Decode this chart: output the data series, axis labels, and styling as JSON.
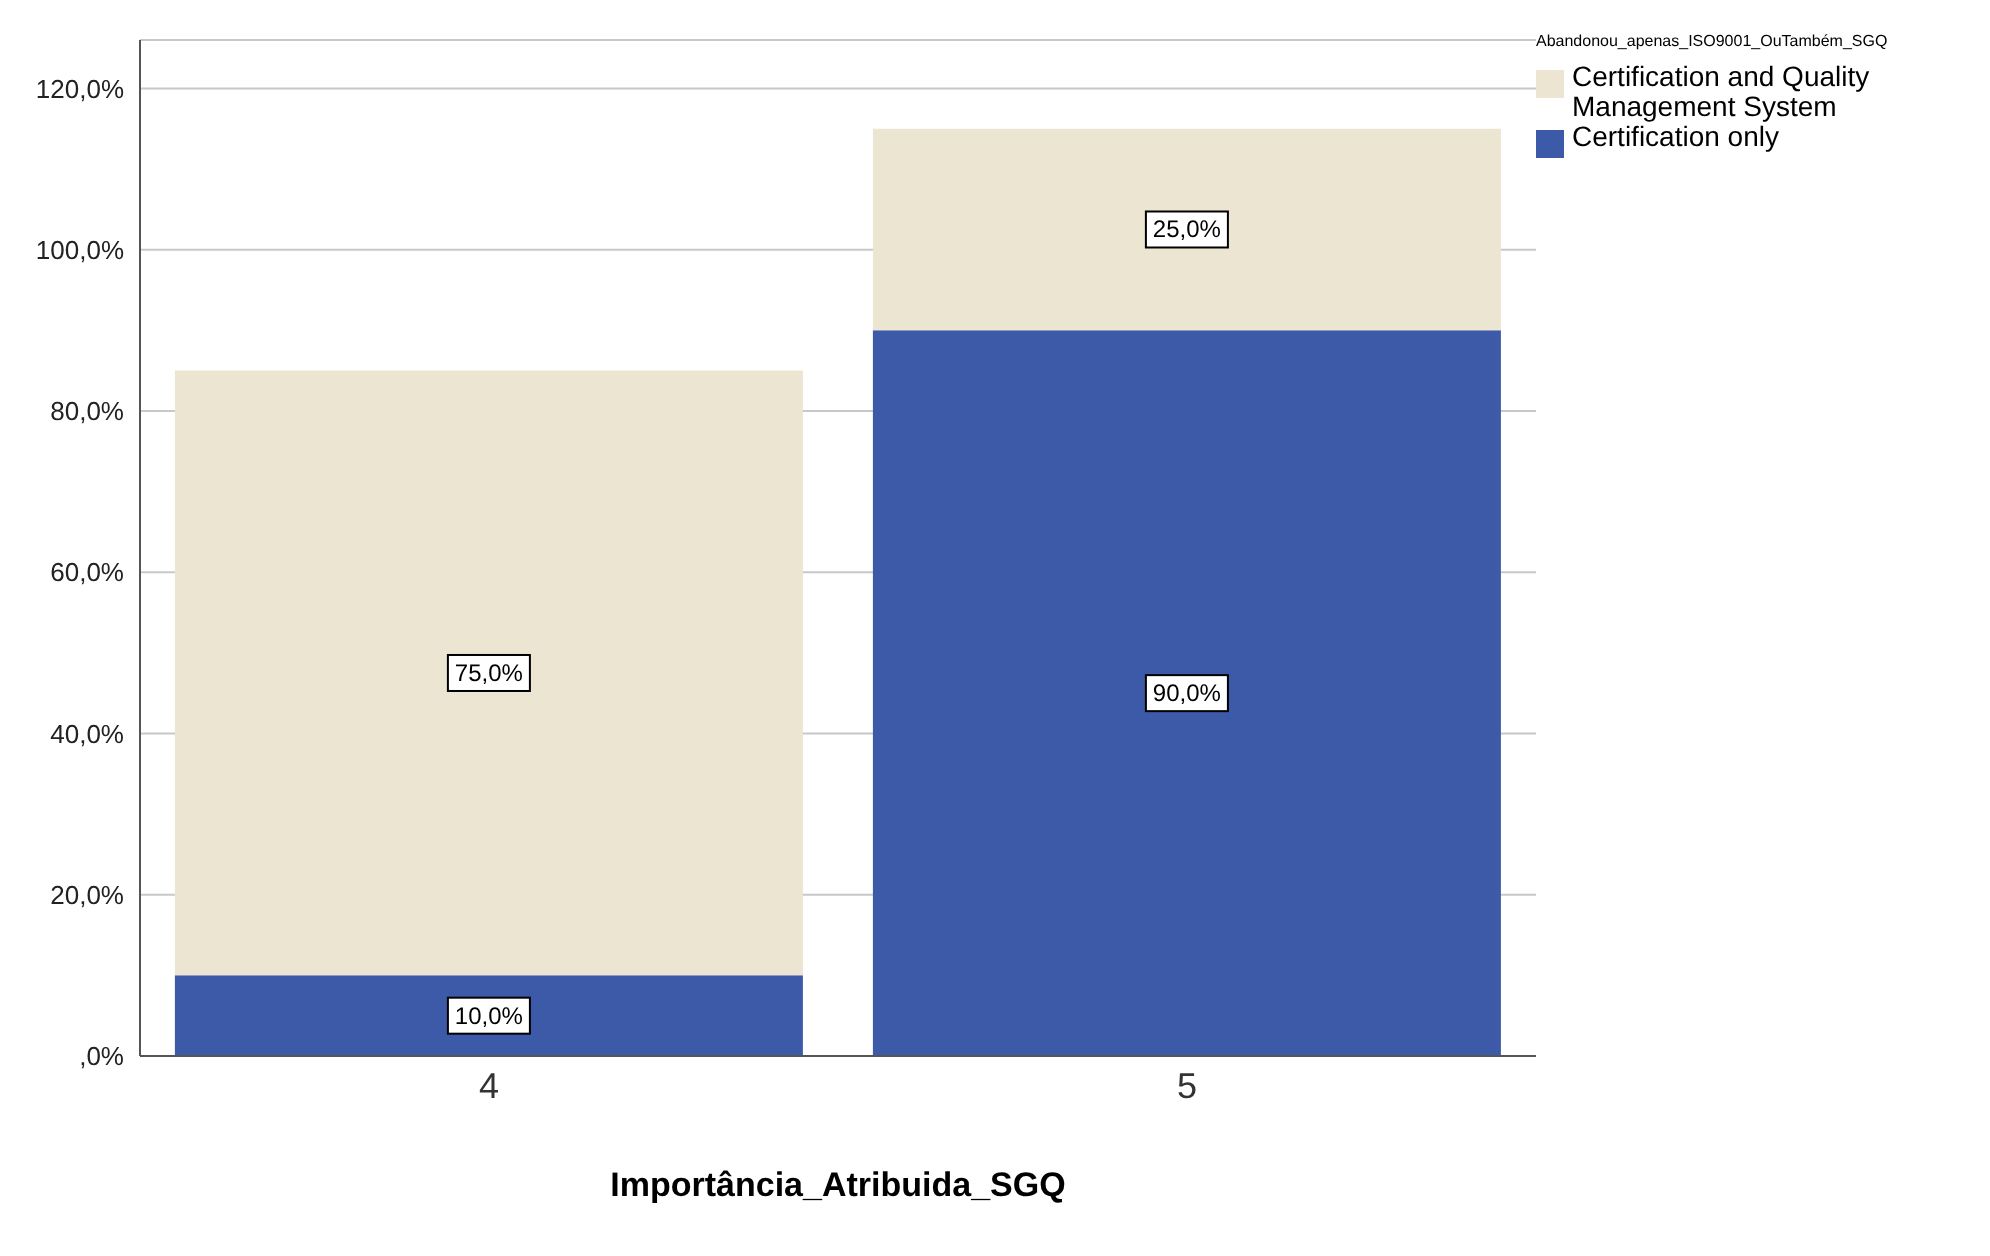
{
  "chart_data": {
    "type": "bar",
    "stacked": true,
    "xlabel": "Importância_Atribuida_SGQ",
    "legend_title": "Abandonou_apenas_ISO9001_OuTambém_SGQ",
    "categories": [
      "4",
      "5"
    ],
    "series": [
      {
        "name": "Certification only",
        "color": "#3d5aa8",
        "values": [
          10,
          90
        ],
        "value_labels": [
          "10,0%",
          "90,0%"
        ]
      },
      {
        "name": "Certification and Quality Management System",
        "color": "#ebe5d1",
        "values": [
          75,
          25
        ],
        "value_labels": [
          "75,0%",
          "25,0%"
        ]
      }
    ],
    "ylim": [
      0,
      126
    ],
    "yticks": [
      {
        "value": 0,
        "label": ",0%"
      },
      {
        "value": 20,
        "label": "20,0%"
      },
      {
        "value": 40,
        "label": "40,0%"
      },
      {
        "value": 60,
        "label": "60,0%"
      },
      {
        "value": 80,
        "label": "80,0%"
      },
      {
        "value": 100,
        "label": "100,0%"
      },
      {
        "value": 120,
        "label": "120,0%"
      }
    ],
    "grid": "y",
    "legend": "top right"
  }
}
